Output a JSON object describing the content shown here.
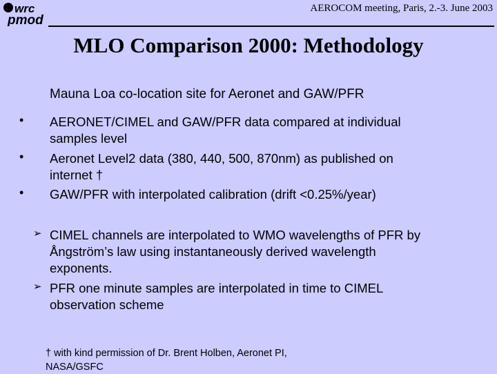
{
  "header": {
    "logo_text": "wrc pmod",
    "meeting": "AEROCOM meeting, Paris, 2.-3. June 2003"
  },
  "title": "MLO Comparison 2000: Methodology",
  "subtitle": "Mauna Loa co-location site for Aeronet and GAW/PFR",
  "bullets": [
    {
      "line1": "AERONET/CIMEL and GAW/PFR data compared at individual",
      "line2": "samples level"
    },
    {
      "line1": "Aeronet Level2 data (380, 440, 500, 870nm) as published on",
      "line2": "internet †"
    },
    {
      "line1": "GAW/PFR with interpolated calibration (drift <0.25%/year)"
    }
  ],
  "arrows": [
    {
      "line1": "CIMEL channels are interpolated to WMO wavelengths of PFR by",
      "line2": "Ångström’s law using instantaneously derived wavelength",
      "line3": "exponents."
    },
    {
      "line1": "PFR one minute samples are interpolated in time to CIMEL",
      "line2": "observation scheme"
    }
  ],
  "footnote": {
    "line1": "† with kind permission of Dr. Brent Holben, Aeronet PI,",
    "line2": "NASA/GSFC"
  }
}
